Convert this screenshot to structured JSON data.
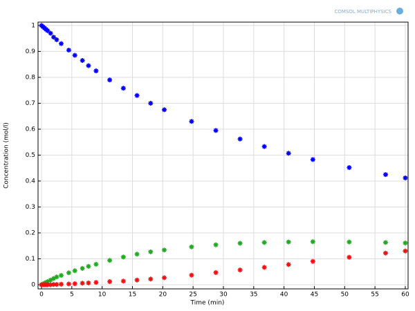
{
  "chart_data": {
    "type": "scatter",
    "watermark": "COMSOL MULTIPHYSICS",
    "x_label": "Time (min)",
    "y_label": "Concentration (mol/l)",
    "x": [
      0,
      0.25,
      0.5,
      0.75,
      1,
      1.5,
      2,
      2.5,
      3.25,
      4.5,
      5.5,
      6.75,
      7.75,
      9,
      11.25,
      13.5,
      15.75,
      18,
      20.25,
      24.75,
      28.75,
      32.75,
      36.75,
      40.75,
      44.75,
      50.75,
      56.75,
      60
    ],
    "series": [
      {
        "color": "#0000ff",
        "values": [
          1,
          0.995,
          0.99,
          0.985,
          0.98,
          0.97,
          0.955,
          0.945,
          0.93,
          0.905,
          0.885,
          0.865,
          0.845,
          0.825,
          0.79,
          0.758,
          0.73,
          0.7,
          0.675,
          0.63,
          0.595,
          0.562,
          0.533,
          0.507,
          0.483,
          0.452,
          0.425,
          0.412
        ]
      },
      {
        "color": "#22aa22",
        "values": [
          0,
          0.003,
          0.006,
          0.009,
          0.012,
          0.018,
          0.024,
          0.03,
          0.036,
          0.046,
          0.054,
          0.063,
          0.071,
          0.079,
          0.094,
          0.107,
          0.118,
          0.127,
          0.134,
          0.146,
          0.154,
          0.16,
          0.163,
          0.165,
          0.166,
          0.165,
          0.163,
          0.161
        ]
      },
      {
        "color": "#ee1111",
        "values": [
          0,
          0,
          0,
          0,
          0,
          0,
          0.001,
          0.001,
          0.002,
          0.003,
          0.004,
          0.006,
          0.007,
          0.009,
          0.012,
          0.014,
          0.018,
          0.022,
          0.027,
          0.037,
          0.047,
          0.057,
          0.067,
          0.078,
          0.09,
          0.106,
          0.122,
          0.13
        ]
      }
    ],
    "xlim": [
      -0.57,
      60.46
    ],
    "ylim": [
      -0.016,
      1.013
    ],
    "xticks": [
      0,
      5,
      10,
      15,
      20,
      25,
      30,
      35,
      40,
      45,
      50,
      55,
      60
    ],
    "yticks": [
      0,
      0.1,
      0.2,
      0.3,
      0.4,
      0.5,
      0.6,
      0.7,
      0.8,
      0.9,
      1
    ],
    "grid": true
  }
}
